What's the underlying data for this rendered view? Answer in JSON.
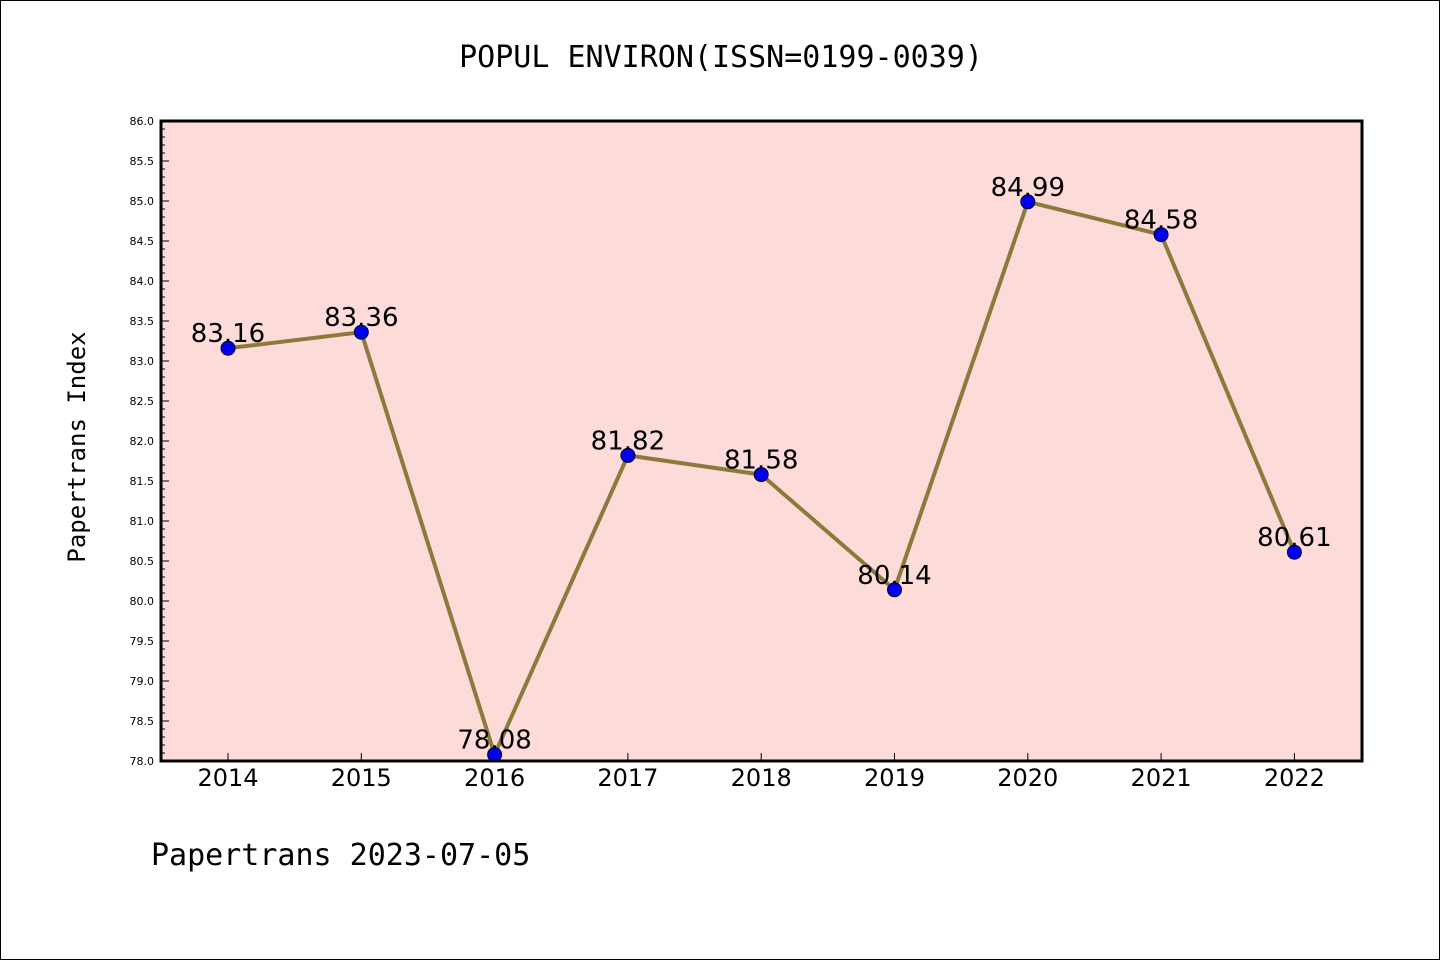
{
  "chart_data": {
    "type": "line",
    "title": "POPUL ENVIRON(ISSN=0199-0039)",
    "ylabel": "Papertrans Index",
    "xlabel": "",
    "footer": "Papertrans 2023-07-05",
    "categories": [
      "2014",
      "2015",
      "2016",
      "2017",
      "2018",
      "2019",
      "2020",
      "2021",
      "2022"
    ],
    "series": [
      {
        "values": [
          83.16,
          83.36,
          78.08,
          81.82,
          81.58,
          80.14,
          84.99,
          84.58,
          80.61
        ]
      }
    ],
    "data_labels": [
      "83.16",
      "83.36",
      "78.08",
      "81.82",
      "81.58",
      "80.14",
      "84.99",
      "84.58",
      "80.61"
    ],
    "ylim": [
      78.0,
      86.0
    ],
    "yticks": [
      "78.0",
      "78.5",
      "79.0",
      "79.5",
      "80.0",
      "80.5",
      "81.0",
      "81.5",
      "82.0",
      "82.5",
      "83.0",
      "83.5",
      "84.0",
      "84.5",
      "85.0",
      "85.5",
      "86.0"
    ],
    "grid": false,
    "legend": "none",
    "colors": {
      "plot_background": "#fddbd9",
      "line": "#8b7a3a",
      "marker": "#0000ee",
      "axes": "#000000"
    }
  }
}
